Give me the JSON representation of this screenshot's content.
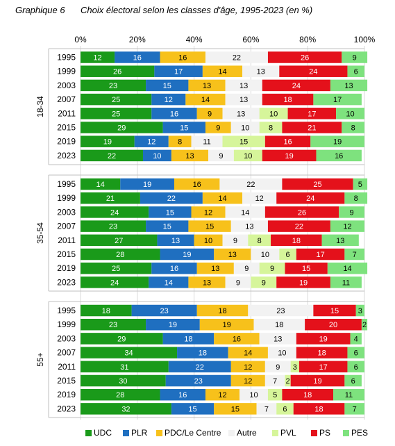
{
  "caption": {
    "number": "Graphique 6",
    "title": "Choix électoral selon les classes d'âge, 1995-2023 (en %)"
  },
  "chart_data": {
    "type": "bar",
    "orientation": "horizontal",
    "stacked": true,
    "title": "Choix électoral selon les classes d'âge, 1995-2023 (en %)",
    "x_tick_labels": [
      "0%",
      "20%",
      "40%",
      "60%",
      "80%",
      "100%"
    ],
    "xlim": [
      0,
      100
    ],
    "grid": true,
    "legend_position": "bottom",
    "series": [
      {
        "name": "UDC",
        "color": "#1a9a1a"
      },
      {
        "name": "PLR",
        "color": "#1f6fc0"
      },
      {
        "name": "PDC/Le Centre",
        "color": "#f7c11b"
      },
      {
        "name": "Autre",
        "color": "#f2f2f2"
      },
      {
        "name": "PVL",
        "color": "#d6f59a"
      },
      {
        "name": "PS",
        "color": "#e4111b"
      },
      {
        "name": "PES",
        "color": "#7ee27e"
      }
    ],
    "groups": [
      {
        "label": "18-34",
        "rows": [
          {
            "year": "1995",
            "values": [
              12,
              16,
              16,
              22,
              0,
              26,
              9
            ]
          },
          {
            "year": "1999",
            "values": [
              26,
              17,
              14,
              13,
              0,
              24,
              6
            ]
          },
          {
            "year": "2003",
            "values": [
              23,
              15,
              13,
              13,
              0,
              24,
              13
            ]
          },
          {
            "year": "2007",
            "values": [
              25,
              12,
              14,
              13,
              0,
              18,
              17
            ]
          },
          {
            "year": "2011",
            "values": [
              25,
              16,
              9,
              13,
              10,
              17,
              10
            ]
          },
          {
            "year": "2015",
            "values": [
              29,
              15,
              9,
              10,
              8,
              21,
              8
            ]
          },
          {
            "year": "2019",
            "values": [
              19,
              12,
              8,
              11,
              15,
              16,
              19
            ]
          },
          {
            "year": "2023",
            "values": [
              22,
              10,
              13,
              9,
              10,
              19,
              16
            ]
          }
        ]
      },
      {
        "label": "35-54",
        "rows": [
          {
            "year": "1995",
            "values": [
              14,
              19,
              16,
              22,
              0,
              25,
              5
            ]
          },
          {
            "year": "1999",
            "values": [
              21,
              22,
              14,
              12,
              0,
              24,
              8
            ]
          },
          {
            "year": "2003",
            "values": [
              24,
              15,
              12,
              14,
              0,
              26,
              9
            ]
          },
          {
            "year": "2007",
            "values": [
              23,
              15,
              15,
              13,
              0,
              22,
              12
            ]
          },
          {
            "year": "2011",
            "values": [
              27,
              13,
              10,
              9,
              8,
              18,
              13
            ]
          },
          {
            "year": "2015",
            "values": [
              28,
              19,
              13,
              10,
              6,
              17,
              7
            ]
          },
          {
            "year": "2019",
            "values": [
              25,
              16,
              13,
              9,
              9,
              15,
              14
            ]
          },
          {
            "year": "2023",
            "values": [
              24,
              14,
              13,
              9,
              9,
              19,
              11
            ]
          }
        ]
      },
      {
        "label": "55+",
        "rows": [
          {
            "year": "1995",
            "values": [
              18,
              23,
              18,
              23,
              0,
              15,
              3
            ]
          },
          {
            "year": "1999",
            "values": [
              23,
              19,
              19,
              18,
              0,
              20,
              2
            ]
          },
          {
            "year": "2003",
            "values": [
              29,
              18,
              16,
              13,
              0,
              19,
              4
            ]
          },
          {
            "year": "2007",
            "values": [
              34,
              18,
              14,
              10,
              0,
              18,
              6
            ]
          },
          {
            "year": "2011",
            "values": [
              31,
              22,
              12,
              9,
              3,
              17,
              6
            ]
          },
          {
            "year": "2015",
            "values": [
              30,
              23,
              12,
              7,
              2,
              19,
              6
            ]
          },
          {
            "year": "2019",
            "values": [
              28,
              16,
              12,
              10,
              5,
              18,
              11
            ]
          },
          {
            "year": "2023",
            "values": [
              32,
              15,
              15,
              7,
              6,
              18,
              7
            ]
          }
        ]
      }
    ]
  }
}
